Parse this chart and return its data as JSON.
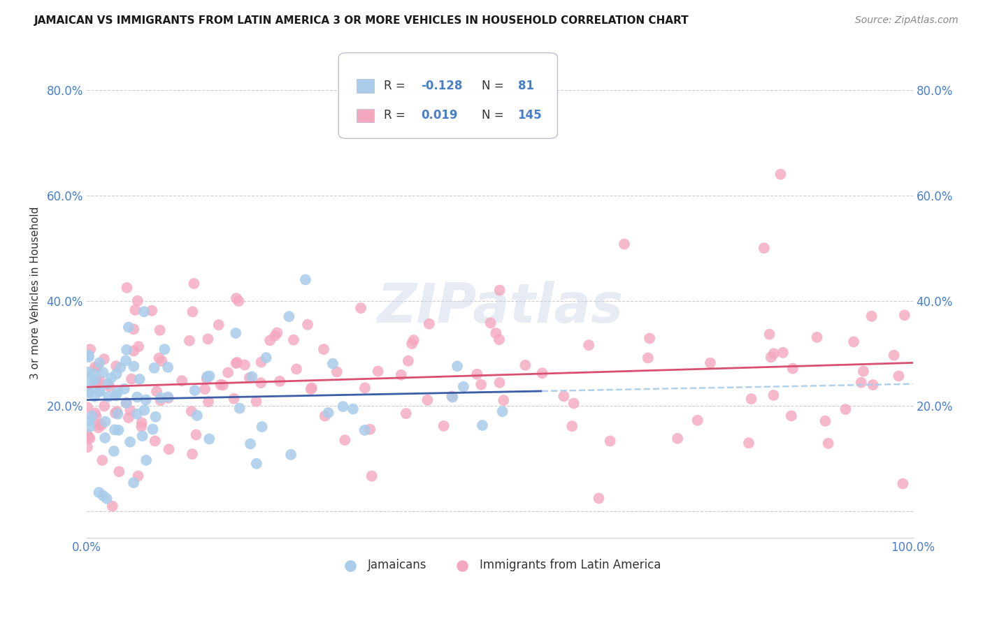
{
  "title": "JAMAICAN VS IMMIGRANTS FROM LATIN AMERICA 3 OR MORE VEHICLES IN HOUSEHOLD CORRELATION CHART",
  "source": "Source: ZipAtlas.com",
  "ylabel": "3 or more Vehicles in Household",
  "xlim": [
    0,
    1.0
  ],
  "ylim": [
    -0.05,
    0.88
  ],
  "yticks": [
    0.0,
    0.2,
    0.4,
    0.6,
    0.8
  ],
  "ytick_labels_left": [
    "",
    "20.0%",
    "40.0%",
    "60.0%",
    "80.0%"
  ],
  "ytick_labels_right": [
    "",
    "20.0%",
    "40.0%",
    "60.0%",
    "80.0%"
  ],
  "xticks": [
    0.0,
    0.2,
    0.4,
    0.6,
    0.8,
    1.0
  ],
  "xtick_labels": [
    "0.0%",
    "",
    "",
    "",
    "",
    "100.0%"
  ],
  "background_color": "#ffffff",
  "legend1_R": "-0.128",
  "legend1_N": "81",
  "legend2_R": "0.019",
  "legend2_N": "145",
  "jamaicans_color": "#A8CCEA",
  "latin_color": "#F4A8C0",
  "trend_blue_solid": "#3B5EA6",
  "trend_blue_dashed_color": "#A8CCEA",
  "trend_pink_solid": "#D94F70",
  "watermark": "ZIPatlas",
  "legend_jamaicans": "Jamaicans",
  "legend_latin": "Immigrants from Latin America",
  "tick_color": "#4A7EC7",
  "grid_color": "#CCCCCC",
  "title_color": "#1a1a1a",
  "source_color": "#888888",
  "ylabel_color": "#333333"
}
